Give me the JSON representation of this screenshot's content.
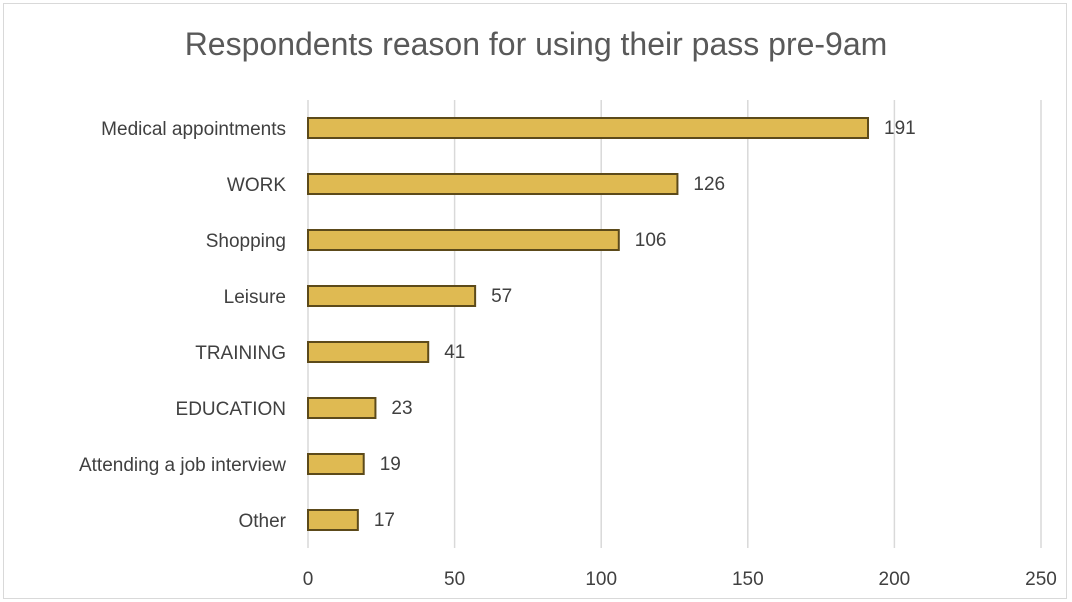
{
  "chart_data": {
    "type": "bar",
    "orientation": "horizontal",
    "title": "Respondents reason for using their pass pre-9am",
    "categories": [
      "Medical appointments",
      "WORK",
      "Shopping",
      "Leisure",
      "TRAINING",
      "EDUCATION",
      "Attending a job interview",
      "Other"
    ],
    "values": [
      191,
      126,
      106,
      57,
      41,
      23,
      19,
      17
    ],
    "xlim": [
      0,
      250
    ],
    "xticks": [
      0,
      50,
      100,
      150,
      200,
      250
    ],
    "grid": true,
    "data_labels": true,
    "bar_color": "#dfba52",
    "bar_edge_color": "#5c4a1a",
    "grid_color": "#d9d9d9"
  }
}
